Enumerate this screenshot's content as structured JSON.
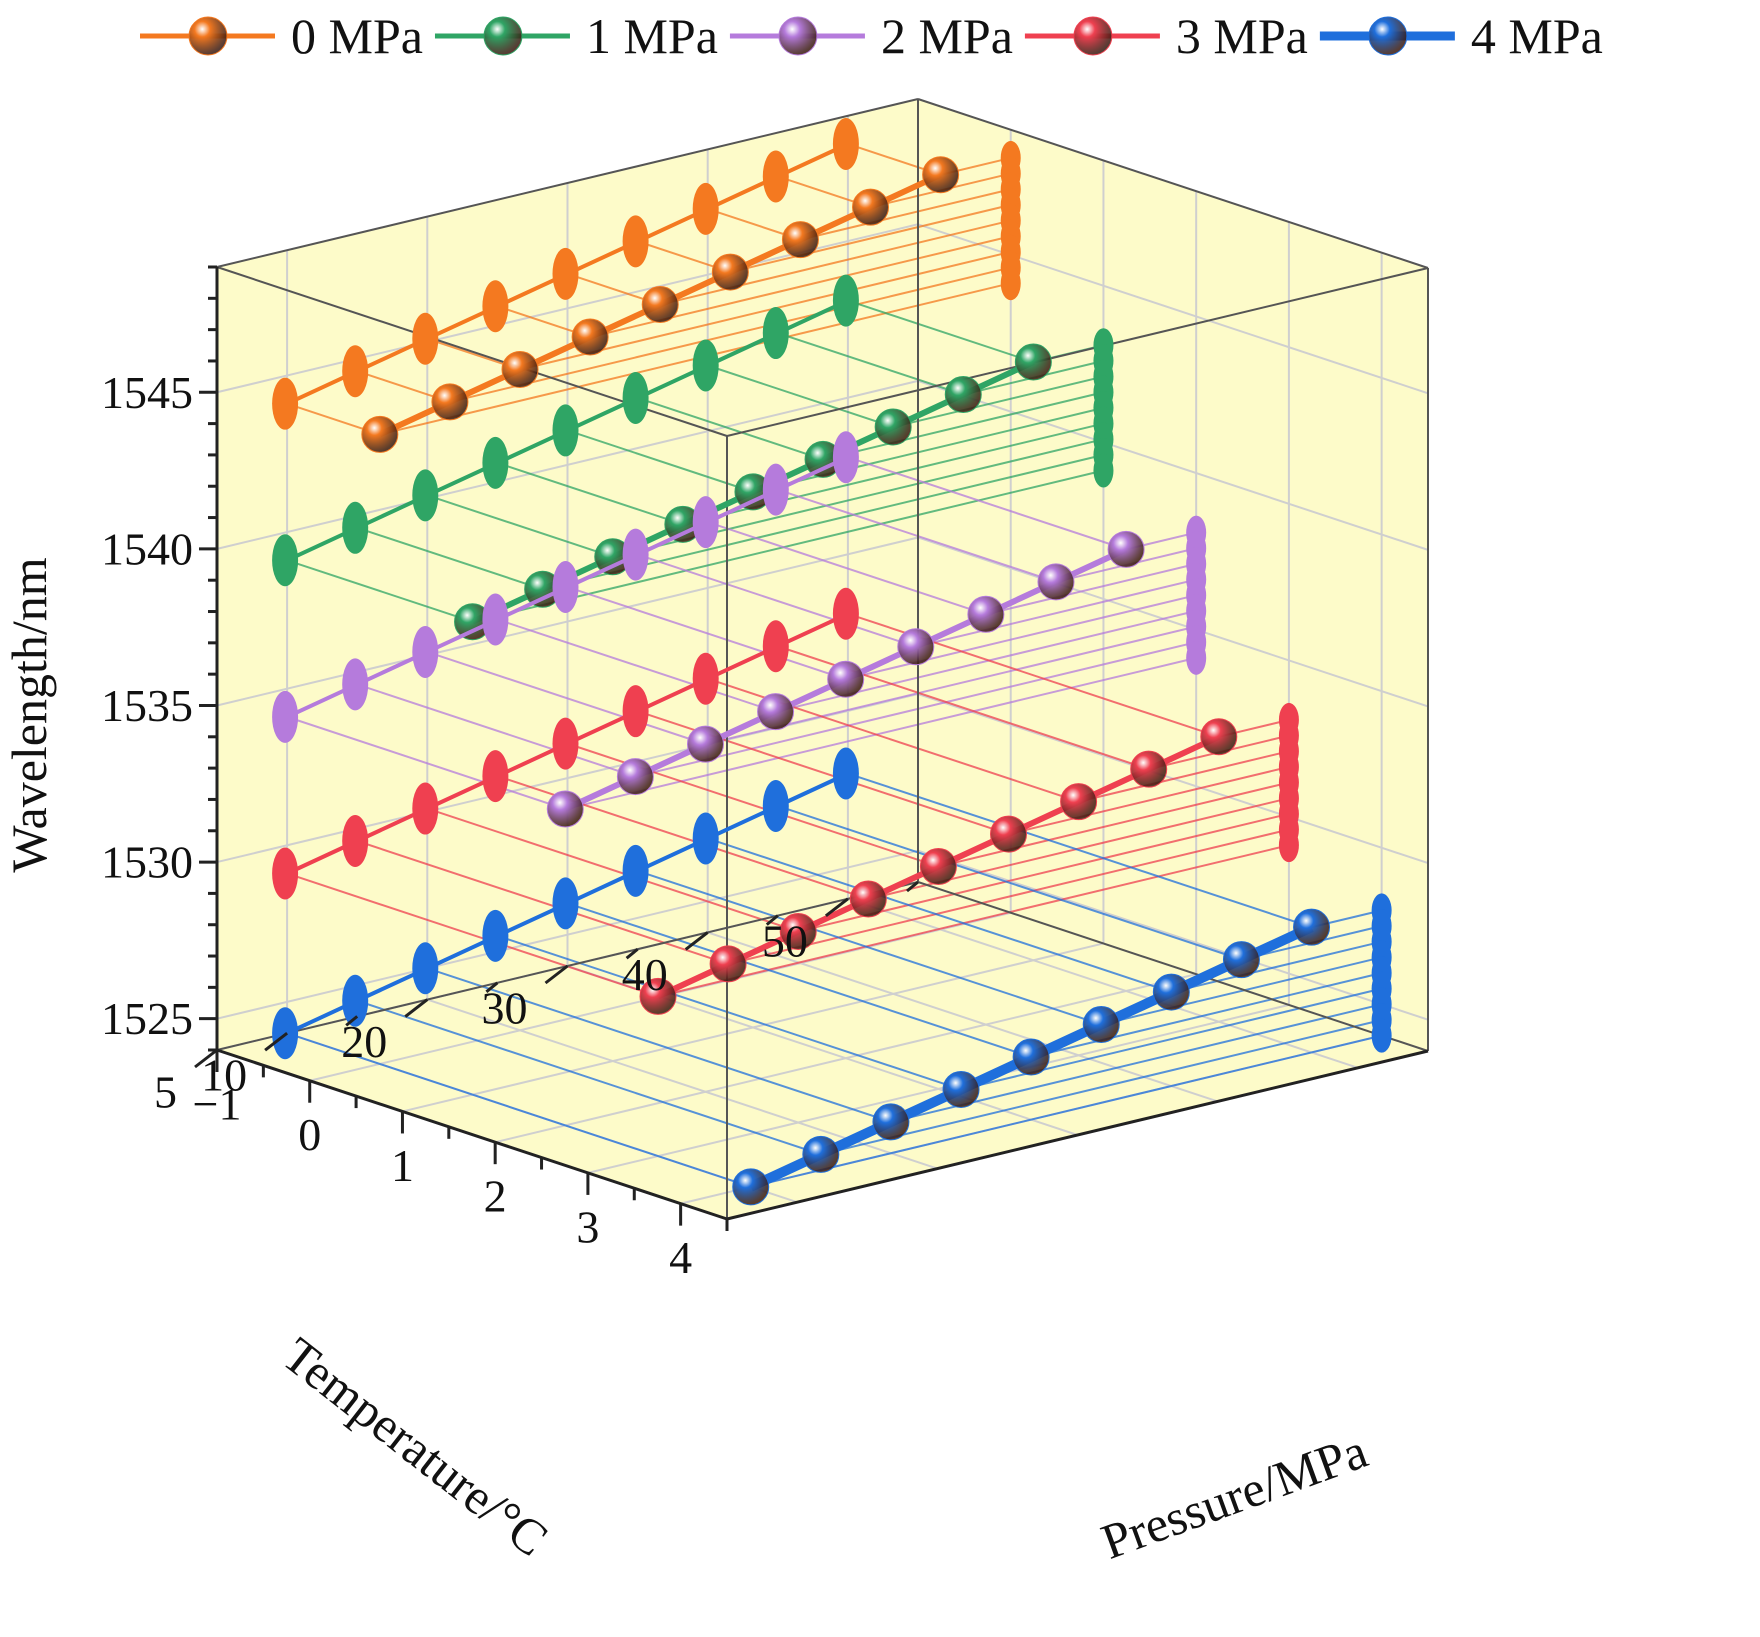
{
  "chart_data": {
    "type": "line3d",
    "title": "",
    "axes": {
      "x": {
        "label": "Pressure/MPa",
        "range": [
          -1,
          4.5
        ],
        "ticks": [
          4,
          3,
          2,
          1,
          0,
          -1
        ],
        "tick_labels": [
          "4",
          "3",
          "2",
          "1",
          "0",
          "−1"
        ]
      },
      "y": {
        "label": "Temperature/°C",
        "range": [
          5,
          55
        ],
        "ticks": [
          5,
          10,
          20,
          30,
          40,
          50
        ],
        "tick_labels": [
          "5",
          "10",
          "20",
          "30",
          "40",
          "50"
        ]
      },
      "z": {
        "label": "Wavelength/nm",
        "range": [
          1524,
          1549
        ],
        "ticks": [
          1525,
          1530,
          1535,
          1540,
          1545
        ],
        "tick_labels": [
          "1525",
          "1530",
          "1535",
          "1540",
          "1545"
        ]
      }
    },
    "temperatures": [
      50,
      45,
      40,
      35,
      30,
      25,
      20,
      15,
      10
    ],
    "series": [
      {
        "name": "0 MPa",
        "pressure": 0,
        "color": "#f47920",
        "wavelength": [
          1548.1,
          1547.6,
          1547.1,
          1546.6,
          1546.1,
          1545.6,
          1545.1,
          1544.6,
          1544.1
        ]
      },
      {
        "name": "1 MPa",
        "pressure": 1,
        "color": "#2fa565",
        "wavelength": [
          1543.1,
          1542.6,
          1542.1,
          1541.6,
          1541.1,
          1540.6,
          1540.1,
          1539.6,
          1539.1
        ]
      },
      {
        "name": "2 MPa",
        "pressure": 2,
        "color": "#b57bdc",
        "wavelength": [
          1538.1,
          1537.6,
          1537.1,
          1536.6,
          1536.1,
          1535.6,
          1535.1,
          1534.6,
          1534.1
        ]
      },
      {
        "name": "3 MPa",
        "pressure": 3,
        "color": "#ef4050",
        "wavelength": [
          1533.1,
          1532.6,
          1532.1,
          1531.6,
          1531.1,
          1530.6,
          1530.1,
          1529.6,
          1529.1
        ]
      },
      {
        "name": "4 MPa",
        "pressure": 4,
        "color": "#1f6fdc",
        "wavelength": [
          1528.0,
          1527.5,
          1527.0,
          1526.5,
          1526.0,
          1525.5,
          1525.0,
          1524.5,
          1524.0
        ]
      }
    ],
    "legend": {
      "placement": "top",
      "labels": [
        "0 MPa",
        "1 MPa",
        "2 MPa",
        "3 MPa",
        "4 MPa"
      ]
    },
    "style": {
      "wall_color": "#fdfbc9",
      "grid_color": "#cfcfcf",
      "axis_color": "#222222"
    }
  }
}
